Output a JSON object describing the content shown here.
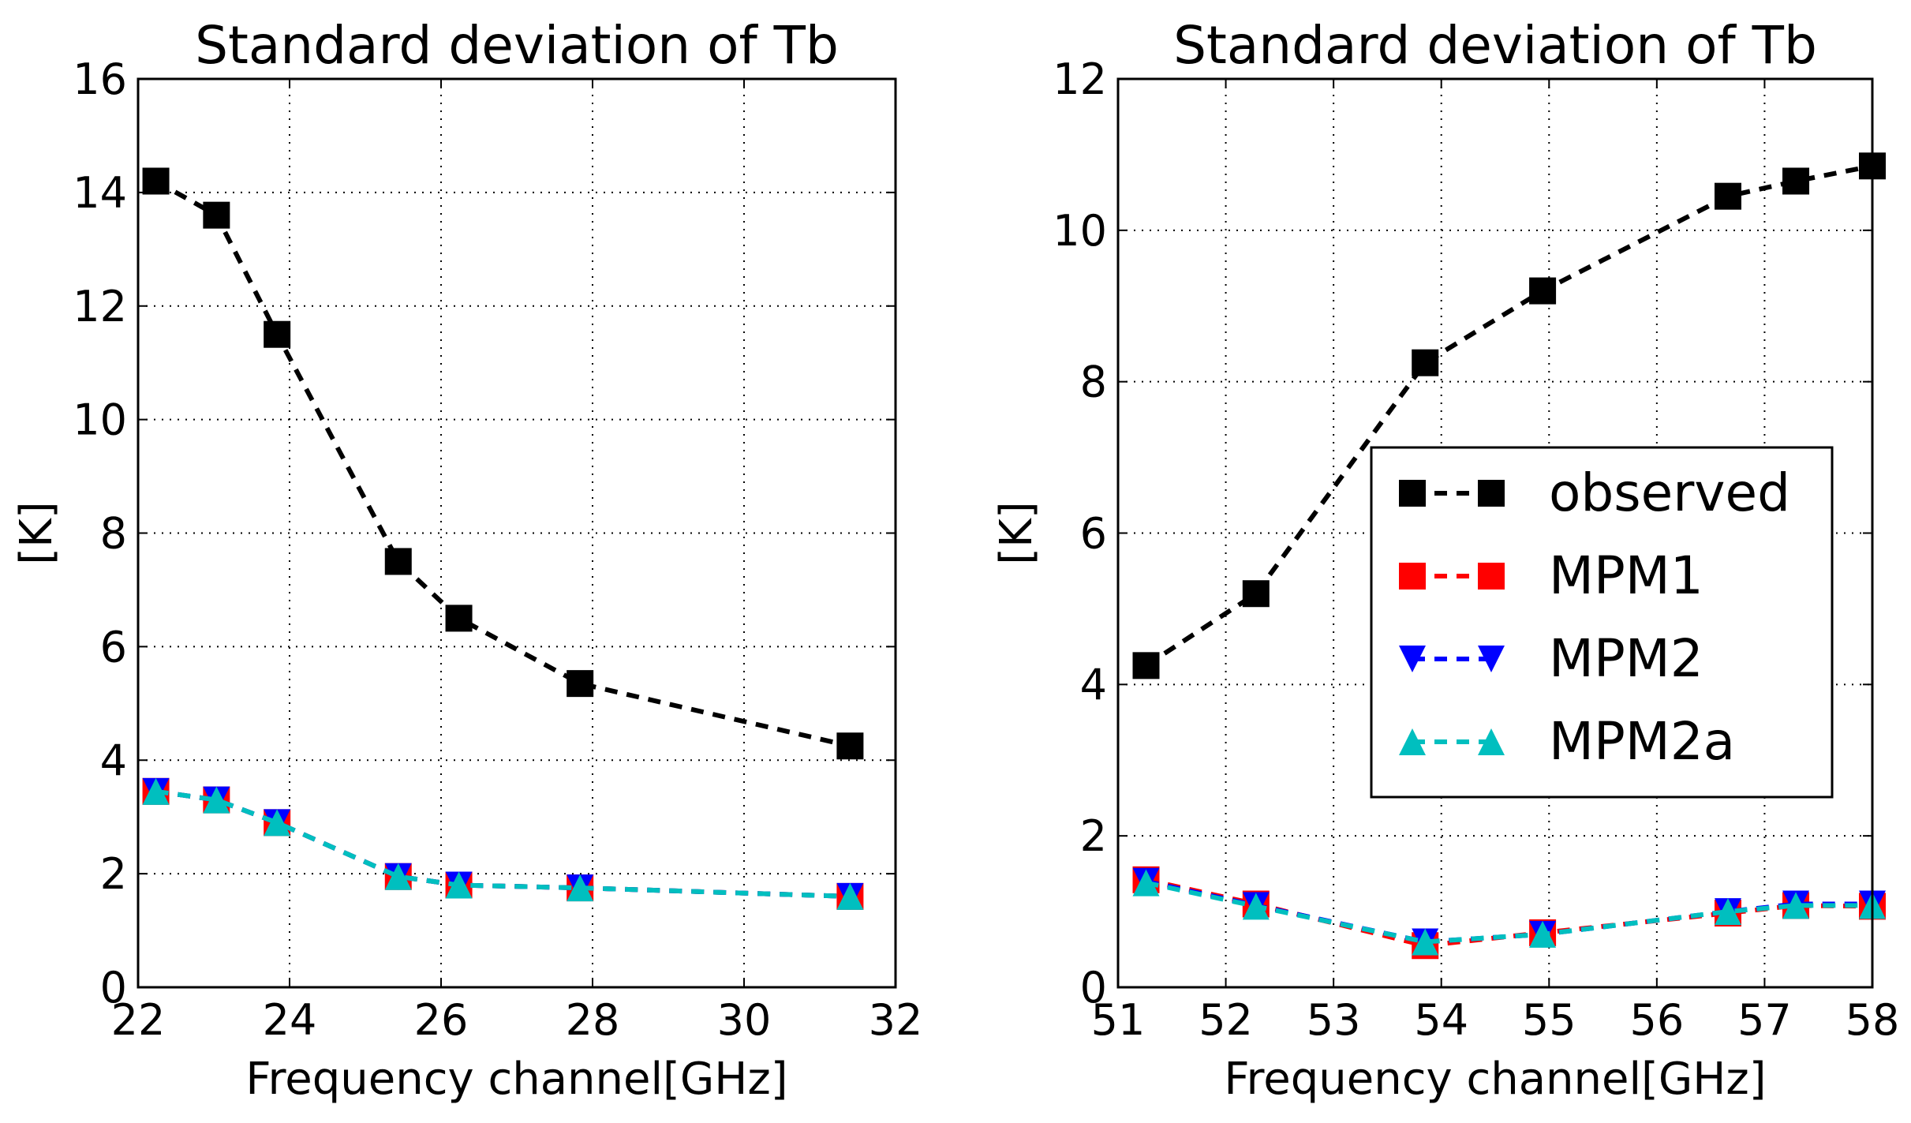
{
  "chart_data": [
    {
      "type": "line",
      "title": "Standard deviation of Tb",
      "xlabel": "Frequency channel[GHz]",
      "ylabel": "[K]",
      "xlim": [
        22,
        32
      ],
      "ylim": [
        0,
        16
      ],
      "xticks": [
        "22",
        "24",
        "26",
        "28",
        "30",
        "32"
      ],
      "xtick_values": [
        22,
        24,
        26,
        28,
        30,
        32
      ],
      "yticks": [
        "0",
        "2",
        "4",
        "6",
        "8",
        "10",
        "12",
        "14",
        "16"
      ],
      "ytick_values": [
        0,
        2,
        4,
        6,
        8,
        10,
        12,
        14,
        16
      ],
      "grid": true,
      "x": [
        22.235,
        23.035,
        23.835,
        25.435,
        26.235,
        27.835,
        31.4
      ],
      "series": [
        {
          "name": "observed",
          "color": "#000000",
          "marker": "square",
          "values": [
            14.2,
            13.6,
            11.5,
            7.5,
            6.5,
            5.35,
            4.25
          ]
        },
        {
          "name": "MPM1",
          "color": "#ff0000",
          "marker": "square",
          "values": [
            3.45,
            3.3,
            2.9,
            1.95,
            1.8,
            1.75,
            1.6
          ]
        },
        {
          "name": "MPM2",
          "color": "#0000ff",
          "marker": "triangle-down",
          "values": [
            3.45,
            3.3,
            2.9,
            1.95,
            1.8,
            1.75,
            1.6
          ]
        },
        {
          "name": "MPM2a",
          "color": "#00bfbf",
          "marker": "triangle-up",
          "values": [
            3.45,
            3.3,
            2.9,
            1.95,
            1.8,
            1.75,
            1.6
          ]
        }
      ]
    },
    {
      "type": "line",
      "title": "Standard deviation of Tb",
      "xlabel": "Frequency channel[GHz]",
      "ylabel": "[K]",
      "xlim": [
        51,
        58
      ],
      "ylim": [
        0,
        12
      ],
      "xticks": [
        "51",
        "52",
        "53",
        "54",
        "55",
        "56",
        "57",
        "58"
      ],
      "xtick_values": [
        51,
        52,
        53,
        54,
        55,
        56,
        57,
        58
      ],
      "yticks": [
        "0",
        "2",
        "4",
        "6",
        "8",
        "10",
        "12"
      ],
      "ytick_values": [
        0,
        2,
        4,
        6,
        8,
        10,
        12
      ],
      "grid": true,
      "legend_position": "center-right",
      "x": [
        51.26,
        52.28,
        53.85,
        54.94,
        56.66,
        57.29,
        58.0
      ],
      "series": [
        {
          "name": "observed",
          "color": "#000000",
          "marker": "square",
          "values": [
            4.25,
            5.2,
            8.25,
            9.2,
            10.45,
            10.65,
            10.85
          ]
        },
        {
          "name": "MPM1",
          "color": "#ff0000",
          "marker": "square",
          "values": [
            1.42,
            1.1,
            0.55,
            0.72,
            0.98,
            1.08,
            1.07
          ]
        },
        {
          "name": "MPM2",
          "color": "#0000ff",
          "marker": "triangle-down",
          "values": [
            1.4,
            1.08,
            0.6,
            0.7,
            1.0,
            1.1,
            1.1
          ]
        },
        {
          "name": "MPM2a",
          "color": "#00bfbf",
          "marker": "triangle-up",
          "values": [
            1.38,
            1.07,
            0.6,
            0.7,
            1.0,
            1.08,
            1.08
          ]
        }
      ]
    }
  ]
}
